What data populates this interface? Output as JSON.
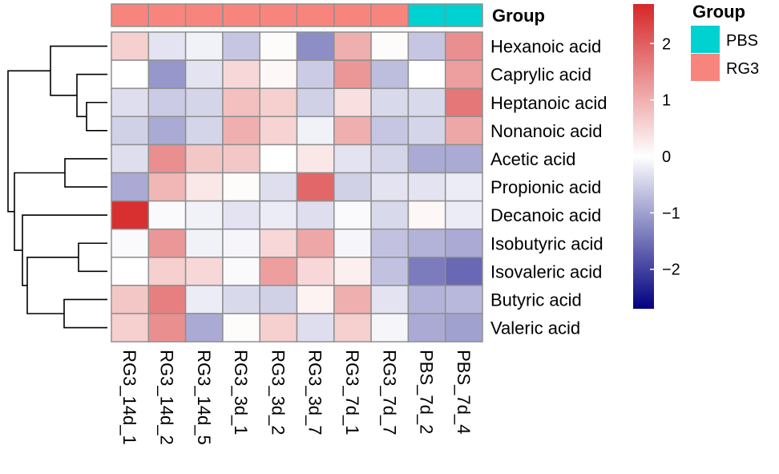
{
  "chart_data": {
    "type": "heatmap",
    "title": "",
    "rows": [
      "Hexanoic acid",
      "Caprylic acid",
      "Heptanoic acid",
      "Nonanoic acid",
      "Acetic acid",
      "Propionic acid",
      "Decanoic acid",
      "Isobutyric acid",
      "Isovaleric acid",
      "Butyric acid",
      "Valeric acid"
    ],
    "columns": [
      "RG3_14d_1",
      "RG3_14d_2",
      "RG3_14d_5",
      "RG3_3d_1",
      "RG3_3d_2",
      "RG3_3d_7",
      "RG3_7d_1",
      "RG3_7d_7",
      "PBS_7d_2",
      "PBS_7d_4"
    ],
    "values": [
      [
        0.6,
        -0.3,
        -0.15,
        -0.6,
        0.05,
        -1.2,
        1.0,
        0.05,
        -0.6,
        1.4
      ],
      [
        0.0,
        -1.1,
        -0.3,
        0.5,
        0.1,
        -0.55,
        1.3,
        -0.7,
        0.0,
        1.2
      ],
      [
        -0.35,
        -0.55,
        -0.45,
        0.8,
        0.6,
        -0.5,
        0.4,
        -0.4,
        -0.4,
        1.7
      ],
      [
        -0.5,
        -0.9,
        -0.45,
        1.0,
        0.55,
        -0.15,
        1.0,
        -0.6,
        -0.45,
        1.1
      ],
      [
        -0.35,
        1.4,
        0.7,
        0.7,
        0.0,
        0.3,
        -0.3,
        -0.45,
        -0.9,
        -0.9
      ],
      [
        -0.9,
        0.9,
        0.3,
        0.05,
        -0.35,
        1.9,
        -0.5,
        -0.3,
        -0.3,
        -0.2
      ],
      [
        2.6,
        -0.05,
        -0.15,
        -0.3,
        -0.2,
        -0.35,
        -0.05,
        -0.4,
        0.1,
        -0.2
      ],
      [
        -0.05,
        1.3,
        -0.15,
        -0.1,
        0.5,
        1.1,
        -0.1,
        -0.65,
        -0.8,
        -0.9
      ],
      [
        0.0,
        0.6,
        0.5,
        -0.05,
        1.2,
        0.5,
        0.2,
        -0.65,
        -1.4,
        -1.6
      ],
      [
        0.7,
        1.6,
        -0.2,
        -0.4,
        -0.5,
        0.15,
        1.0,
        -0.3,
        -0.8,
        -0.75
      ],
      [
        0.6,
        1.4,
        -0.9,
        0.05,
        0.6,
        -0.35,
        0.6,
        -0.1,
        -0.9,
        -1.0
      ]
    ],
    "colorbar": {
      "min": -2.7,
      "max": 2.7,
      "ticks": [
        2,
        1,
        0,
        -1,
        -2
      ],
      "tick_labels": [
        "2",
        "1",
        "0",
        "−1",
        "−2"
      ],
      "colors": {
        "low": "#000080",
        "mid": "#ffffff",
        "high": "#d62728"
      }
    },
    "annotation": {
      "title": "Group",
      "column_groups": [
        "RG3",
        "RG3",
        "RG3",
        "RG3",
        "RG3",
        "RG3",
        "RG3",
        "RG3",
        "PBS",
        "PBS"
      ],
      "legend": [
        {
          "name": "PBS",
          "color": "#00d1d1"
        },
        {
          "name": "RG3",
          "color": "#f8857d"
        }
      ]
    },
    "row_dendrogram": true,
    "cell_border_color": "#8f8f8f"
  }
}
